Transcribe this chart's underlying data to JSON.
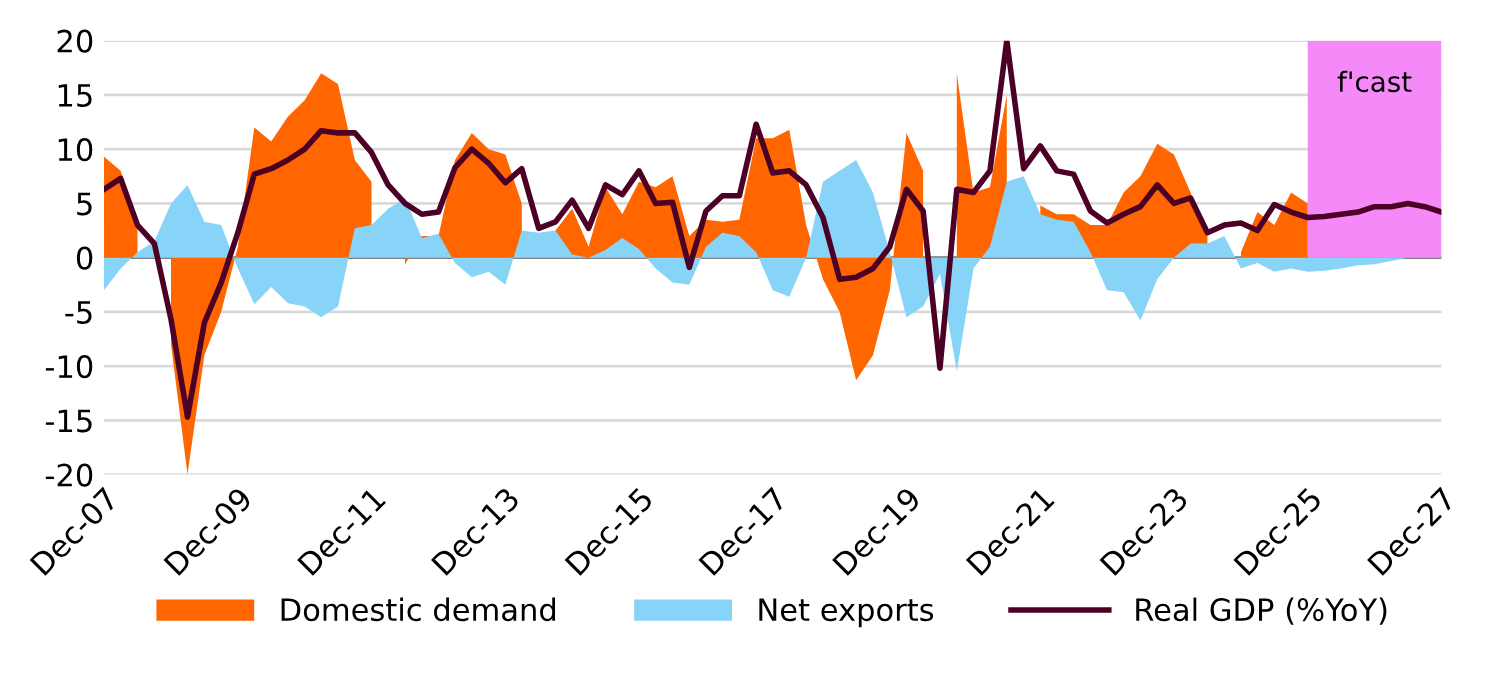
{
  "chart_data": {
    "type": "area",
    "x": [
      "2007-12",
      "2008-03",
      "2008-06",
      "2008-09",
      "2008-12",
      "2009-03",
      "2009-06",
      "2009-09",
      "2009-12",
      "2010-03",
      "2010-06",
      "2010-09",
      "2010-12",
      "2011-03",
      "2011-06",
      "2011-09",
      "2011-12",
      "2012-03",
      "2012-06",
      "2012-09",
      "2012-12",
      "2013-03",
      "2013-06",
      "2013-09",
      "2013-12",
      "2014-03",
      "2014-06",
      "2014-09",
      "2014-12",
      "2015-03",
      "2015-06",
      "2015-09",
      "2015-12",
      "2016-03",
      "2016-06",
      "2016-09",
      "2016-12",
      "2017-03",
      "2017-06",
      "2017-09",
      "2017-12",
      "2018-03",
      "2018-06",
      "2018-09",
      "2018-12",
      "2019-03",
      "2019-06",
      "2019-09",
      "2019-12",
      "2020-03",
      "2020-06",
      "2020-09",
      "2020-12",
      "2021-03",
      "2021-06",
      "2021-09",
      "2021-12",
      "2022-03",
      "2022-06",
      "2022-09",
      "2022-12",
      "2023-03",
      "2023-06",
      "2023-09",
      "2023-12",
      "2024-03",
      "2024-06",
      "2024-09",
      "2024-12",
      "2025-03",
      "2025-06",
      "2025-09",
      "2025-12",
      "2026-03",
      "2026-06",
      "2026-09",
      "2026-12",
      "2027-03",
      "2027-06",
      "2027-09",
      "2027-12"
    ],
    "series": [
      {
        "name": "Domestic demand",
        "color": "#ff6600",
        "values": [
          9.3,
          8,
          3,
          null,
          -8,
          -20,
          -9,
          -5,
          1,
          12,
          10.7,
          13,
          14.5,
          17,
          16,
          9,
          7,
          null,
          -0.6,
          2,
          2,
          9,
          11.5,
          10,
          9.5,
          5,
          null,
          2.5,
          4.5,
          1,
          6.5,
          4,
          7,
          6.5,
          7.5,
          2,
          3.5,
          3.3,
          3.5,
          11,
          11,
          11.8,
          3,
          -2,
          -5,
          -11.3,
          -9,
          -3,
          11.5,
          8,
          null,
          17,
          6,
          6.5,
          15,
          null,
          4.8,
          4,
          4,
          3,
          3,
          6,
          7.5,
          10.5,
          9.5,
          6,
          2,
          null,
          0.5,
          4.2,
          3,
          6,
          5,
          null,
          null,
          null,
          null,
          null,
          null,
          null,
          null
        ]
      },
      {
        "color": "#f589f8",
        "values": [
          null,
          null,
          null,
          null,
          null,
          null,
          null,
          null,
          null,
          null,
          null,
          null,
          null,
          null,
          null,
          null,
          null,
          null,
          null,
          null,
          null,
          null,
          null,
          null,
          null,
          null,
          null,
          null,
          null,
          null,
          null,
          null,
          null,
          null,
          null,
          null,
          null,
          null,
          null,
          null,
          null,
          null,
          null,
          null,
          null,
          null,
          null,
          null,
          null,
          null,
          null,
          null,
          null,
          null,
          null,
          null,
          null,
          null,
          null,
          null,
          null,
          null,
          null,
          null,
          null,
          null,
          null,
          null,
          null,
          null,
          null,
          null,
          20,
          20,
          20,
          20,
          20,
          20,
          20,
          20,
          20
        ]
      },
      {
        "name": "Net exports",
        "color": "#87d4f8",
        "values": [
          -3,
          -1,
          0.5,
          1.5,
          5,
          6.7,
          3.3,
          3,
          -1,
          -4.3,
          -2.7,
          -4.2,
          -4.5,
          -5.5,
          -4.5,
          2.7,
          3,
          4.5,
          5.5,
          1.8,
          2.2,
          -0.5,
          -1.8,
          -1.3,
          -2.5,
          2.5,
          2.3,
          2.5,
          0.3,
          0,
          0.7,
          1.8,
          0.8,
          -1,
          -2.3,
          -2.5,
          1,
          2.3,
          2,
          0.5,
          -3,
          -3.6,
          0,
          7,
          8,
          9,
          6,
          0.5,
          -5.5,
          -4.5,
          -1.5,
          -10.5,
          -1,
          1,
          7,
          7.5,
          4,
          3.5,
          3.3,
          0.5,
          -3,
          -3.2,
          -5.8,
          -2,
          0,
          1.3,
          1.3,
          2,
          -1,
          -0.5,
          -1.3,
          -1,
          -1.3,
          -1.2,
          -1,
          -0.7,
          -0.6,
          -0.3,
          0,
          null,
          null
        ]
      },
      {
        "name": "Real GDP (%YoY)",
        "type": "line",
        "color": "#4d0026",
        "values": [
          6.3,
          7.3,
          3,
          1.3,
          -5.7,
          -14.7,
          -6,
          -2.3,
          2.3,
          7.7,
          8.2,
          9,
          10,
          11.7,
          11.5,
          11.5,
          9.7,
          6.7,
          5,
          4,
          4.2,
          8.3,
          10,
          8.7,
          6.9,
          8.2,
          2.7,
          3.3,
          5.3,
          2.7,
          6.7,
          5.8,
          8,
          5,
          5.1,
          -0.9,
          4.3,
          5.7,
          5.7,
          12.3,
          7.8,
          8,
          6.7,
          3.7,
          -2,
          -1.8,
          -1,
          1,
          6.3,
          4.3,
          -10.2,
          6.3,
          6,
          8,
          20,
          8.2,
          10.3,
          8,
          7.7,
          4.3,
          3.2,
          4,
          4.7,
          6.7,
          5,
          5.5,
          2.3,
          3,
          3.2,
          2.5,
          4.9,
          4.2,
          3.7,
          3.8,
          4,
          4.2,
          4.7,
          4.7,
          5,
          4.7,
          4.2
        ]
      }
    ],
    "annotations": [
      "f'cast"
    ],
    "ref_lines": [
      {
        "axis": "y",
        "value": 0,
        "color": "#808080"
      }
    ],
    "xlim": [
      "2007-12",
      "2027-12"
    ],
    "xticks": [
      {
        "value": "2007-12",
        "label": "Dec-07"
      },
      {
        "value": "2009-12",
        "label": "Dec-09"
      },
      {
        "value": "2011-12",
        "label": "Dec-11"
      },
      {
        "value": "2013-12",
        "label": "Dec-13"
      },
      {
        "value": "2015-12",
        "label": "Dec-15"
      },
      {
        "value": "2017-12",
        "label": "Dec-17"
      },
      {
        "value": "2019-12",
        "label": "Dec-19"
      },
      {
        "value": "2021-12",
        "label": "Dec-21"
      },
      {
        "value": "2023-12",
        "label": "Dec-23"
      },
      {
        "value": "2025-12",
        "label": "Dec-25"
      },
      {
        "value": "2027-12",
        "label": "Dec-27"
      }
    ],
    "ylim": [
      -20,
      20
    ],
    "yticks": [
      -20,
      -15,
      -10,
      -5,
      0,
      5,
      10,
      15,
      20
    ],
    "grid": "y",
    "legend": "bottom"
  }
}
